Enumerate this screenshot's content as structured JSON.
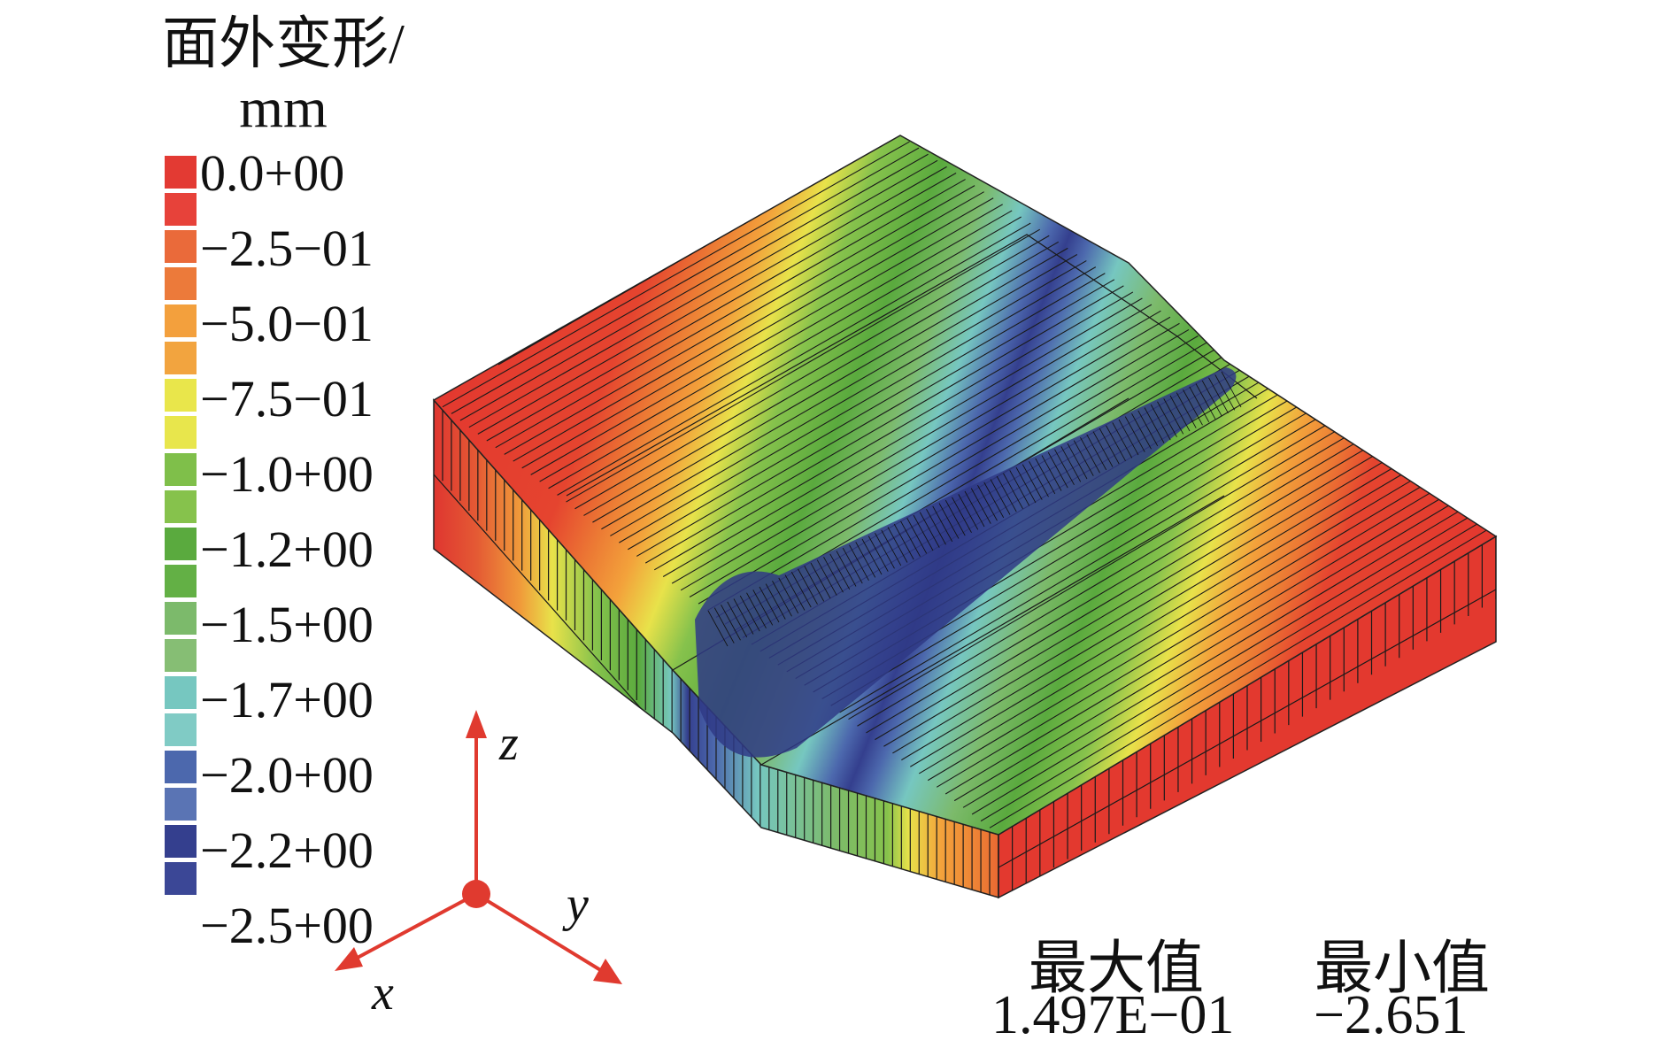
{
  "legend": {
    "title_line1": "面外变形/",
    "title_line2": "mm",
    "labels": [
      "0.0+00",
      "−2.5−01",
      "−5.0−01",
      "−7.5−01",
      "−1.0+00",
      "−1.2+00",
      "−1.5+00",
      "−1.7+00",
      "−2.0+00",
      "−2.2+00",
      "−2.5+00"
    ],
    "colors": [
      "#e33a33",
      "#e7423a",
      "#ea6a3a",
      "#ec7a3a",
      "#f3a03d",
      "#f2a43f",
      "#e9e64b",
      "#e8e64c",
      "#7fbf4a",
      "#86c24c",
      "#5aaa3e",
      "#63b045",
      "#7cba6b",
      "#86be74",
      "#76c7c0",
      "#80cbc5",
      "#4c68ad",
      "#5a74b4",
      "#343f8e",
      "#3b4796"
    ]
  },
  "axes": {
    "x": "x",
    "y": "y",
    "z": "z"
  },
  "stats": {
    "max_title": "最大值",
    "max_value": "1.497E−01",
    "min_title": "最小值",
    "min_value": "−2.651"
  }
}
